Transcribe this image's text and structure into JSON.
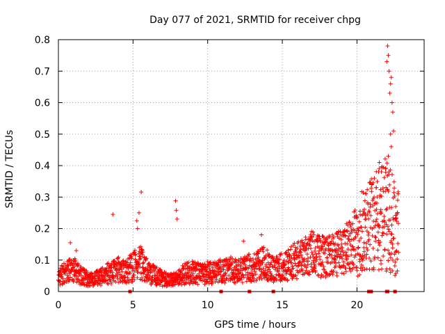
{
  "chart_data": {
    "type": "scatter",
    "title": "Day 077 of 2021, SRMTID for receiver chpg",
    "xlabel": "GPS time / hours",
    "ylabel": "SRMTID / TECUs",
    "xlim": [
      0,
      24.5
    ],
    "ylim": [
      0,
      0.8
    ],
    "x_ticks": [
      0,
      5,
      10,
      15,
      20
    ],
    "x_tick_labels": [
      "0",
      "5",
      "10",
      "15",
      "20"
    ],
    "y_ticks": [
      0,
      0.1,
      0.2,
      0.3,
      0.4,
      0.5,
      0.6,
      0.7,
      0.8
    ],
    "y_tick_labels": [
      "0",
      "0.1",
      "0.2",
      "0.3",
      "0.4",
      "0.5",
      "0.6",
      "0.7",
      "0.8"
    ],
    "grid": true,
    "series": [
      {
        "name": "SRMTID",
        "marker": "+",
        "color": "#ff0000",
        "baseline": [
          [
            0,
            0.05
          ],
          [
            0.5,
            0.06
          ],
          [
            1,
            0.07
          ],
          [
            1.5,
            0.05
          ],
          [
            2,
            0.04
          ],
          [
            2.5,
            0.04
          ],
          [
            3,
            0.05
          ],
          [
            3.5,
            0.06
          ],
          [
            4,
            0.07
          ],
          [
            4.5,
            0.06
          ],
          [
            5,
            0.08
          ],
          [
            5.5,
            0.09
          ],
          [
            6,
            0.06
          ],
          [
            6.5,
            0.05
          ],
          [
            7,
            0.04
          ],
          [
            7.5,
            0.035
          ],
          [
            8,
            0.04
          ],
          [
            8.5,
            0.06
          ],
          [
            9,
            0.06
          ],
          [
            9.5,
            0.055
          ],
          [
            10,
            0.06
          ],
          [
            10.5,
            0.06
          ],
          [
            11,
            0.065
          ],
          [
            11.5,
            0.07
          ],
          [
            12,
            0.065
          ],
          [
            12.5,
            0.07
          ],
          [
            13,
            0.08
          ],
          [
            13.5,
            0.09
          ],
          [
            14,
            0.09
          ],
          [
            14.5,
            0.07
          ],
          [
            15,
            0.08
          ],
          [
            15.5,
            0.09
          ],
          [
            16,
            0.1
          ],
          [
            16.5,
            0.11
          ],
          [
            17,
            0.12
          ],
          [
            17.5,
            0.11
          ],
          [
            18,
            0.11
          ],
          [
            18.5,
            0.12
          ],
          [
            19,
            0.13
          ],
          [
            19.5,
            0.14
          ],
          [
            20,
            0.17
          ],
          [
            20.5,
            0.2
          ],
          [
            21,
            0.22
          ],
          [
            21.5,
            0.24
          ],
          [
            22,
            0.25
          ],
          [
            22.5,
            0.2
          ],
          [
            22.8,
            0.19
          ]
        ],
        "outliers": [
          [
            3.65,
            0.245
          ],
          [
            5.55,
            0.316
          ],
          [
            5.4,
            0.25
          ],
          [
            5.25,
            0.225
          ],
          [
            5.3,
            0.2
          ],
          [
            7.85,
            0.288
          ],
          [
            7.9,
            0.258
          ],
          [
            7.95,
            0.23
          ],
          [
            0.8,
            0.155
          ],
          [
            1.2,
            0.13
          ],
          [
            20.85,
            0.345
          ],
          [
            21.3,
            0.33
          ],
          [
            21.6,
            0.26
          ],
          [
            21.5,
            0.41
          ],
          [
            21.45,
            0.38
          ],
          [
            22.05,
            0.78
          ],
          [
            22.1,
            0.75
          ],
          [
            22.0,
            0.73
          ],
          [
            22.15,
            0.7
          ],
          [
            22.3,
            0.68
          ],
          [
            22.25,
            0.66
          ],
          [
            22.2,
            0.63
          ],
          [
            22.35,
            0.6
          ],
          [
            22.4,
            0.57
          ],
          [
            22.45,
            0.51
          ],
          [
            22.25,
            0.5
          ],
          [
            22.3,
            0.46
          ],
          [
            22.1,
            0.43
          ],
          [
            22.15,
            0.38
          ],
          [
            21.95,
            0.33
          ],
          [
            22.6,
            0.27
          ],
          [
            22.7,
            0.25
          ],
          [
            20.5,
            0.25
          ],
          [
            20.6,
            0.23
          ],
          [
            21.15,
            0.3
          ],
          [
            19.1,
            0.18
          ],
          [
            17.95,
            0.165
          ],
          [
            13.6,
            0.18
          ],
          [
            12.4,
            0.16
          ]
        ],
        "seed": 77
      }
    ],
    "data_gaps_x": [
      4.8,
      10.9,
      12.8,
      14.4,
      20.8,
      20.95,
      22.0,
      22.05,
      22.55
    ]
  }
}
